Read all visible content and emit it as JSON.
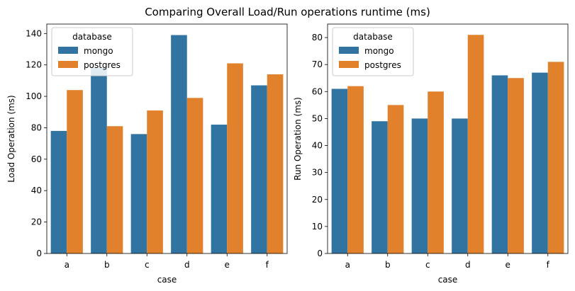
{
  "figure": {
    "title": "Comparing Overall Load/Run operations runtime (ms)"
  },
  "colors": {
    "mongo": "#3274a1",
    "postgres": "#e1812c"
  },
  "chart_data": [
    {
      "type": "bar",
      "title": "",
      "xlabel": "case",
      "ylabel": "Load Operation (ms)",
      "categories": [
        "a",
        "b",
        "c",
        "d",
        "e",
        "f"
      ],
      "series": [
        {
          "name": "mongo",
          "values": [
            78,
            118,
            76,
            139,
            82,
            107
          ]
        },
        {
          "name": "postgres",
          "values": [
            104,
            81,
            91,
            99,
            121,
            114
          ]
        }
      ],
      "ylim": [
        0,
        146
      ],
      "yticks": [
        0,
        20,
        40,
        60,
        80,
        100,
        120,
        140
      ],
      "grid": false,
      "legend": {
        "title": "database",
        "position": "top-left"
      }
    },
    {
      "type": "bar",
      "title": "",
      "xlabel": "case",
      "ylabel": "Run Operation (ms)",
      "categories": [
        "a",
        "b",
        "c",
        "d",
        "e",
        "f"
      ],
      "series": [
        {
          "name": "mongo",
          "values": [
            61,
            49,
            50,
            50,
            66,
            67
          ]
        },
        {
          "name": "postgres",
          "values": [
            62,
            55,
            60,
            81,
            65,
            71
          ]
        }
      ],
      "ylim": [
        0,
        85
      ],
      "yticks": [
        0,
        10,
        20,
        30,
        40,
        50,
        60,
        70,
        80
      ],
      "grid": false,
      "legend": {
        "title": "database",
        "position": "top-left"
      }
    }
  ]
}
